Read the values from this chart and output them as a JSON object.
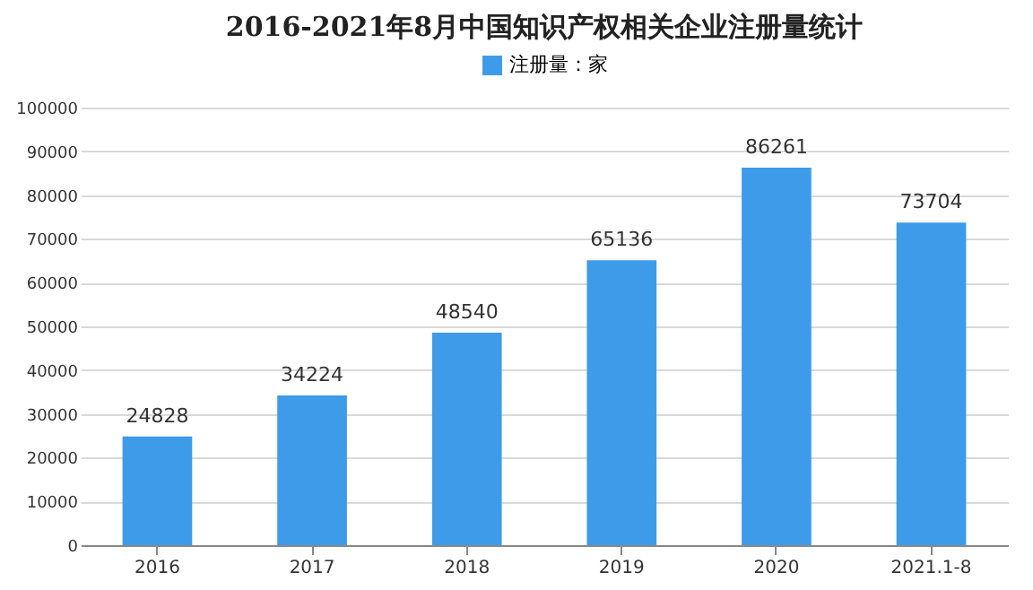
{
  "chart_data": {
    "type": "bar",
    "title": "2016-2021年8月中国知识产权相关企业注册量统计",
    "categories": [
      "2016",
      "2017",
      "2018",
      "2019",
      "2020",
      "2021.1-8"
    ],
    "series": [
      {
        "name": "注册量：家",
        "color": "#3d9be9",
        "values": [
          24828,
          34224,
          48540,
          65136,
          86261,
          73704
        ]
      }
    ],
    "ylim": [
      0,
      100000
    ],
    "yticks": [
      0,
      10000,
      20000,
      30000,
      40000,
      50000,
      60000,
      70000,
      80000,
      90000,
      100000
    ],
    "grid": "y",
    "legend": "top",
    "data_labels": true
  }
}
